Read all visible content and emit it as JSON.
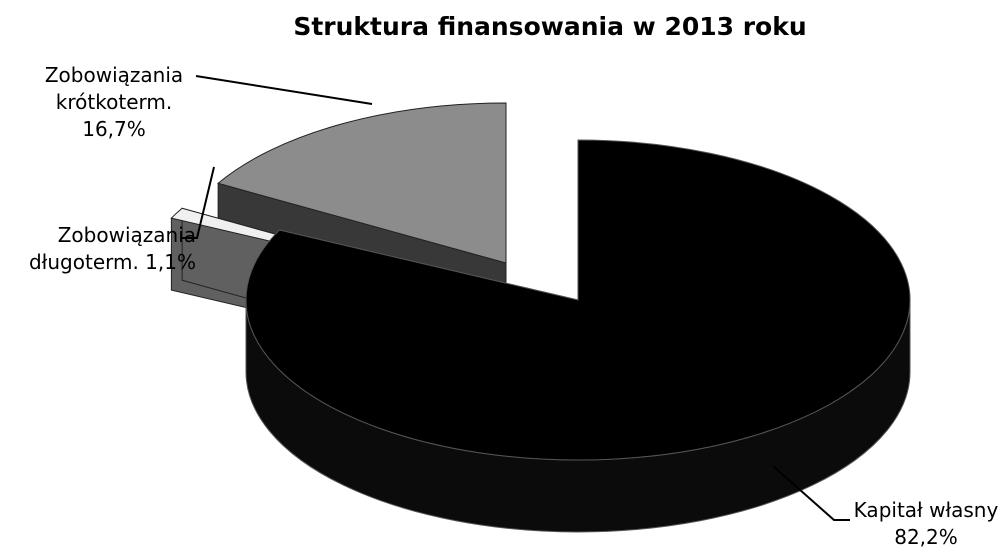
{
  "chart_data": {
    "type": "pie",
    "title": "Struktura finansowania w 2013 roku",
    "slices": [
      {
        "category": "Zobowiązania krótkoterm.",
        "value": 16.7,
        "label_lines": [
          "Zobowiązania",
          "krótkoterm.",
          "16,7%"
        ],
        "color": "#8c8c8c"
      },
      {
        "category": "Zobowiązania długoterm.",
        "value": 1.1,
        "label_lines": [
          "Zobowiązania",
          "długoterm. 1,1%"
        ],
        "color": "#f0f0f0"
      },
      {
        "category": "Kapitał własny",
        "value": 82.2,
        "label_lines": [
          "Kapitał własny",
          "82,2%"
        ],
        "color": "#000000"
      }
    ],
    "style": "3d-exploded",
    "legend": "none"
  }
}
